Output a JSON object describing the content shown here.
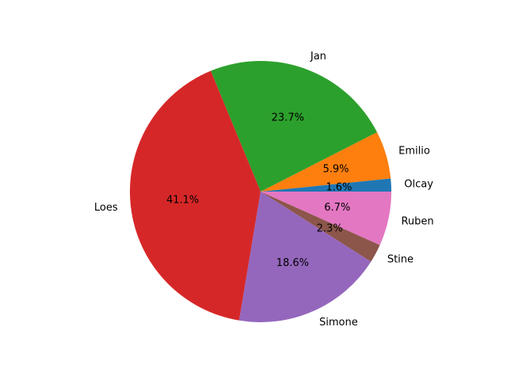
{
  "chart_data": {
    "type": "pie",
    "title": "",
    "start_angle_deg": 0,
    "direction": "counterclockwise",
    "slices": [
      {
        "label": "Olcay",
        "value": 1.6,
        "pct_label": "1.6%",
        "color": "#1f77b4"
      },
      {
        "label": "Emilio",
        "value": 5.9,
        "pct_label": "5.9%",
        "color": "#ff7f0e"
      },
      {
        "label": "Jan",
        "value": 23.7,
        "pct_label": "23.7%",
        "color": "#2ca02c"
      },
      {
        "label": "Loes",
        "value": 41.1,
        "pct_label": "41.1%",
        "color": "#d62728"
      },
      {
        "label": "Simone",
        "value": 18.6,
        "pct_label": "18.6%",
        "color": "#9467bd"
      },
      {
        "label": "Stine",
        "value": 2.3,
        "pct_label": "2.3%",
        "color": "#8c564b"
      },
      {
        "label": "Ruben",
        "value": 6.7,
        "pct_label": "6.7%",
        "color": "#e377c2"
      }
    ]
  }
}
